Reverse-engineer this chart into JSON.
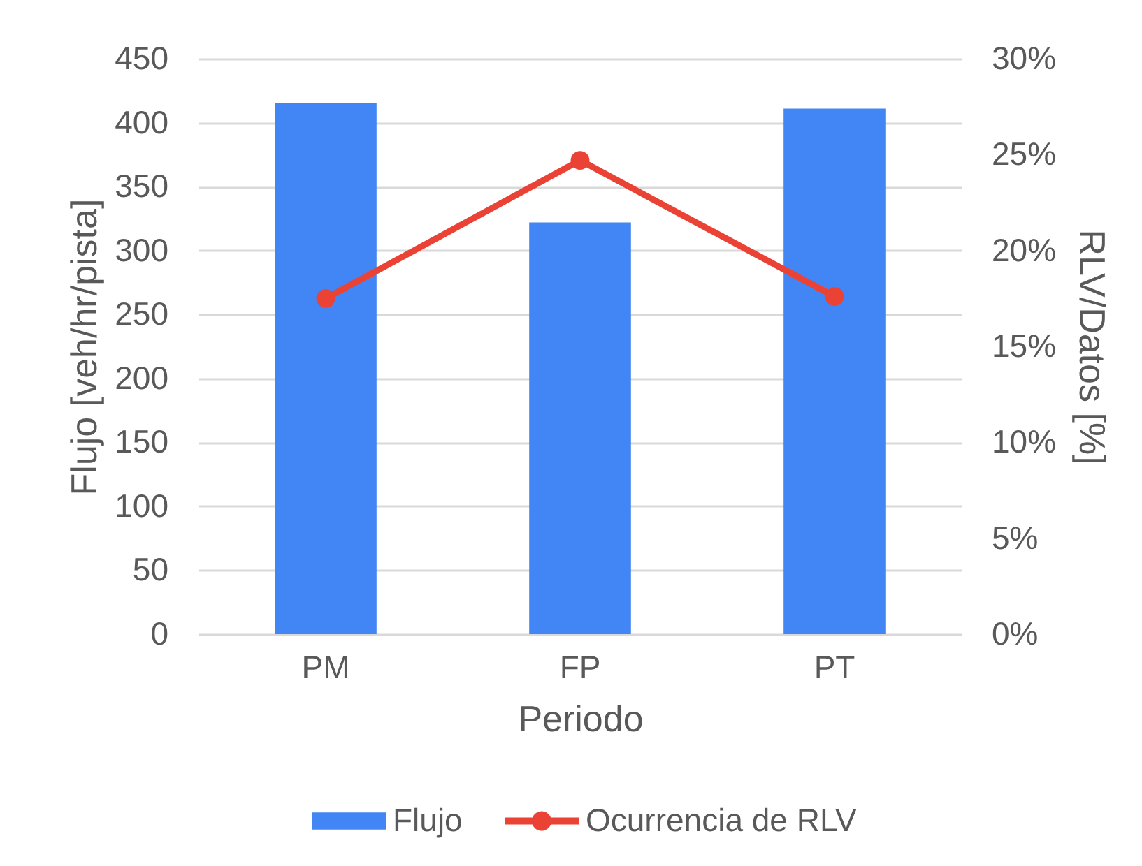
{
  "chart_data": {
    "type": "bar",
    "xlabel": "Periodo",
    "ylabel": "Flujo [veh/hr/pista]",
    "y2label": "RLV/Datos [%]",
    "categories": [
      "PM",
      "FP",
      "PT"
    ],
    "series": [
      {
        "name": "Flujo",
        "color": "#4285f4",
        "values": [
          415,
          322,
          411
        ]
      },
      {
        "name": "Ocurrencia de RLV",
        "type": "line",
        "axis": "y2",
        "color": "#ea4335",
        "values": [
          17.5,
          24.7,
          17.6
        ]
      }
    ],
    "ylim": [
      0,
      450
    ],
    "yticks": [
      0,
      50,
      100,
      150,
      200,
      250,
      300,
      350,
      400,
      450
    ],
    "y2lim": [
      0,
      30
    ],
    "y2ticks": [
      {
        "value": 0,
        "label": "0%"
      },
      {
        "value": 5,
        "label": "5%"
      },
      {
        "value": 10,
        "label": "10%"
      },
      {
        "value": 15,
        "label": "15%"
      },
      {
        "value": 20,
        "label": "20%"
      },
      {
        "value": 25,
        "label": "25%"
      },
      {
        "value": 30,
        "label": "30%"
      }
    ],
    "grid": "y",
    "legend": "bottom",
    "marker": "circle",
    "line_style": "solid"
  }
}
